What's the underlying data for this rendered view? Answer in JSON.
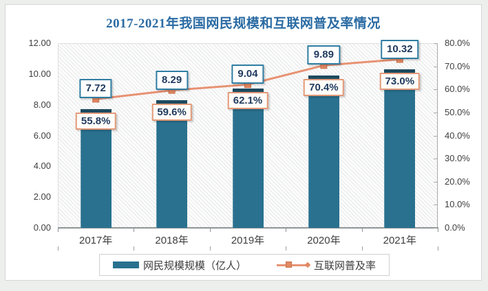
{
  "title": "2017-2021年我国网民规模和互联网普及率情况",
  "chart_data": {
    "type": "combo (bar + line)",
    "title": "2017-2021年我国网民规模和互联网普及率情况",
    "categories": [
      "2017年",
      "2018年",
      "2019年",
      "2020年",
      "2021年"
    ],
    "series": [
      {
        "name": "网民规模规模（亿人）",
        "type": "bar",
        "axis": "left",
        "values": [
          7.72,
          8.29,
          9.04,
          9.89,
          10.32
        ],
        "data_labels": [
          "7.72",
          "8.29",
          "9.04",
          "9.89",
          "10.32"
        ],
        "color": "#29718f",
        "cap_color": "#1d4a5f",
        "label_border_color": "#2f7da2"
      },
      {
        "name": "互联网普及率",
        "type": "line",
        "axis": "right",
        "values": [
          55.8,
          59.6,
          62.1,
          70.4,
          73.0
        ],
        "data_labels": [
          "55.8%",
          "59.6%",
          "62.1%",
          "70.4%",
          "73.0%"
        ],
        "color": "#e79273",
        "marker_color": "#e28862",
        "marker_border_color": "#c9714b",
        "label_border_color": "#e39a78"
      }
    ],
    "left_axis": {
      "min": 0,
      "max": 12,
      "step": 2,
      "tick_labels": [
        "12.00",
        "10.00",
        "8.00",
        "6.00",
        "4.00",
        "2.00",
        "0.00"
      ]
    },
    "right_axis": {
      "min": 0,
      "max": 80,
      "step": 10,
      "tick_labels": [
        "80.0%",
        "70.0%",
        "60.0%",
        "50.0%",
        "40.0%",
        "30.0%",
        "20.0%",
        "10.0%",
        "0.0%"
      ]
    },
    "gridlines": "none (hatched plot background)",
    "legend_position": "bottom"
  },
  "legend": {
    "items": [
      {
        "label": "网民规模规模（亿人）",
        "marker": "bar-swatch"
      },
      {
        "label": "互联网普及率",
        "marker": "line-with-square-marker"
      }
    ]
  },
  "colors": {
    "title_text": "#2b6ba3",
    "bar": "#29718f",
    "bar_cap": "#1d4a5f",
    "line": "#e79273",
    "data_label_text": "#1f3a5f",
    "axis_text": "#3f3f3f",
    "page_background": "#ecefec"
  }
}
